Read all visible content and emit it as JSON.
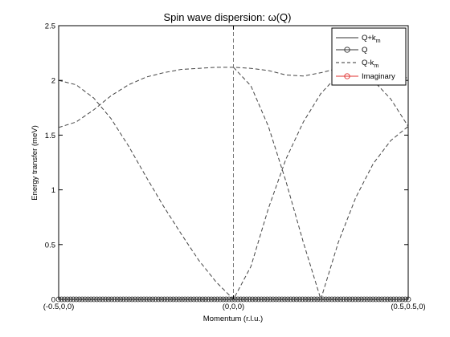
{
  "chart_data": {
    "type": "line",
    "title": "Spin wave dispersion: ω(Q)",
    "xlabel": "Momentum (r.l.u.)",
    "ylabel": "Energy transfer (meV)",
    "xlim": [
      0,
      1
    ],
    "ylim": [
      0,
      2.5
    ],
    "x_ticks": [
      {
        "x": 0,
        "label": "(-0.5,0,0)"
      },
      {
        "x": 0.5,
        "label": "(0,0,0)"
      },
      {
        "x": 1,
        "label": "(0.5,0.5,0)"
      }
    ],
    "y_ticks": [
      {
        "y": 0,
        "label": "0"
      },
      {
        "y": 0.5,
        "label": "0.5"
      },
      {
        "y": 1,
        "label": "1"
      },
      {
        "y": 1.5,
        "label": "1.5"
      },
      {
        "y": 2,
        "label": "2"
      },
      {
        "y": 2.5,
        "label": "2.5"
      }
    ],
    "vertical_line_x": 0.5,
    "grid": false,
    "legend_position": "top-right",
    "legend": [
      {
        "label": "Q+k",
        "sub": "m",
        "style": "solid",
        "marker": "none",
        "color": "#333333"
      },
      {
        "label": "Q",
        "sub": "",
        "style": "solid",
        "marker": "circle",
        "color": "#333333"
      },
      {
        "label": "Q-k",
        "sub": "m",
        "style": "dashed",
        "marker": "none",
        "color": "#333333"
      },
      {
        "label": "Imaginary",
        "sub": "",
        "style": "solid",
        "marker": "circle",
        "color": "#e0302f"
      }
    ],
    "series": [
      {
        "style": "dashed",
        "x": [
          0,
          0.05,
          0.1,
          0.15,
          0.2,
          0.25,
          0.3,
          0.35,
          0.4,
          0.45,
          0.5,
          0.55,
          0.6,
          0.65,
          0.7,
          0.75,
          0.8,
          0.85,
          0.9,
          0.95,
          1.0
        ],
        "values": [
          1.57,
          1.62,
          1.73,
          1.86,
          1.96,
          2.03,
          2.07,
          2.1,
          2.11,
          2.12,
          2.12,
          2.11,
          2.09,
          2.05,
          2.04,
          2.07,
          2.11,
          2.12,
          2.0,
          1.83,
          1.58
        ]
      },
      {
        "style": "dashed",
        "x": [
          0,
          0.05,
          0.1,
          0.15,
          0.2,
          0.25,
          0.3,
          0.35,
          0.4,
          0.45,
          0.5,
          0.55,
          0.6,
          0.65,
          0.7,
          0.75,
          0.8,
          0.85,
          0.9,
          0.95,
          1.0
        ],
        "values": [
          2.0,
          1.96,
          1.84,
          1.65,
          1.4,
          1.12,
          0.85,
          0.6,
          0.36,
          0.16,
          0.0,
          0.3,
          0.83,
          1.28,
          1.62,
          1.88,
          2.05,
          2.12,
          2.12,
          2.06,
          2.02
        ]
      },
      {
        "style": "dashed",
        "x": [
          0.5,
          0.55,
          0.6,
          0.65,
          0.7,
          0.75,
          0.8,
          0.85,
          0.9,
          0.95,
          1.0
        ],
        "values": [
          2.12,
          1.95,
          1.58,
          1.08,
          0.52,
          0.0,
          0.52,
          0.93,
          1.24,
          1.45,
          1.58
        ]
      }
    ],
    "zero_markers": {
      "count": 120,
      "y": 0
    }
  }
}
